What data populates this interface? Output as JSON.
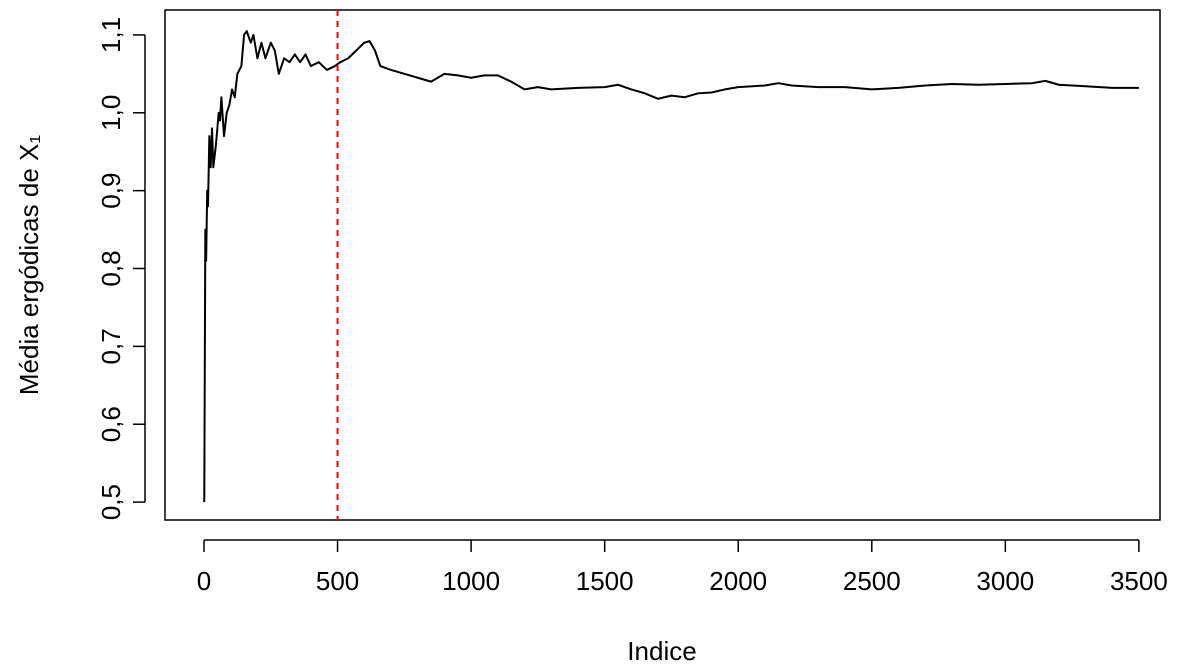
{
  "chart_data": {
    "type": "line",
    "x_label": "Indice",
    "y_label": "Média ergódicas de X₁",
    "x": [
      1,
      5,
      8,
      12,
      15,
      20,
      25,
      30,
      35,
      45,
      55,
      60,
      65,
      75,
      85,
      95,
      105,
      115,
      125,
      140,
      150,
      160,
      175,
      185,
      200,
      215,
      230,
      250,
      265,
      280,
      300,
      320,
      340,
      360,
      380,
      400,
      430,
      460,
      490,
      510,
      540,
      570,
      600,
      620,
      640,
      660,
      700,
      750,
      800,
      850,
      900,
      950,
      1000,
      1050,
      1100,
      1150,
      1200,
      1250,
      1300,
      1400,
      1500,
      1550,
      1600,
      1650,
      1700,
      1750,
      1800,
      1850,
      1900,
      1950,
      2000,
      2100,
      2150,
      2200,
      2300,
      2400,
      2500,
      2600,
      2700,
      2800,
      2900,
      3000,
      3100,
      3150,
      3200,
      3300,
      3400,
      3500
    ],
    "series": [
      {
        "color": "#000000",
        "values": [
          0.5,
          0.85,
          0.81,
          0.9,
          0.88,
          0.97,
          0.93,
          0.98,
          0.93,
          0.96,
          1.0,
          0.99,
          1.02,
          0.97,
          1.0,
          1.01,
          1.03,
          1.02,
          1.05,
          1.06,
          1.1,
          1.105,
          1.09,
          1.1,
          1.07,
          1.09,
          1.07,
          1.09,
          1.08,
          1.05,
          1.07,
          1.065,
          1.075,
          1.065,
          1.075,
          1.06,
          1.065,
          1.055,
          1.06,
          1.065,
          1.07,
          1.08,
          1.09,
          1.092,
          1.08,
          1.06,
          1.055,
          1.05,
          1.045,
          1.04,
          1.05,
          1.048,
          1.045,
          1.048,
          1.048,
          1.04,
          1.03,
          1.033,
          1.03,
          1.032,
          1.033,
          1.036,
          1.03,
          1.025,
          1.018,
          1.022,
          1.02,
          1.025,
          1.026,
          1.03,
          1.033,
          1.035,
          1.038,
          1.035,
          1.033,
          1.033,
          1.03,
          1.032,
          1.035,
          1.037,
          1.036,
          1.037,
          1.038,
          1.041,
          1.036,
          1.034,
          1.032,
          1.032
        ]
      }
    ],
    "reference_line": {
      "x": 500,
      "color": "#ff0000",
      "dashed": true
    },
    "xlim": [
      -146,
      3579
    ],
    "ylim": [
      0.477,
      1.132
    ],
    "xticks": [
      0,
      500,
      1000,
      1500,
      2000,
      2500,
      3000,
      3500
    ],
    "yticks": [
      {
        "value": 0.5,
        "label": "0,5"
      },
      {
        "value": 0.6,
        "label": "0,6"
      },
      {
        "value": 0.7,
        "label": "0,7"
      },
      {
        "value": 0.8,
        "label": "0,8"
      },
      {
        "value": 0.9,
        "label": "0,9"
      },
      {
        "value": 1.0,
        "label": "1,0"
      },
      {
        "value": 1.1,
        "label": "1,1"
      }
    ]
  }
}
